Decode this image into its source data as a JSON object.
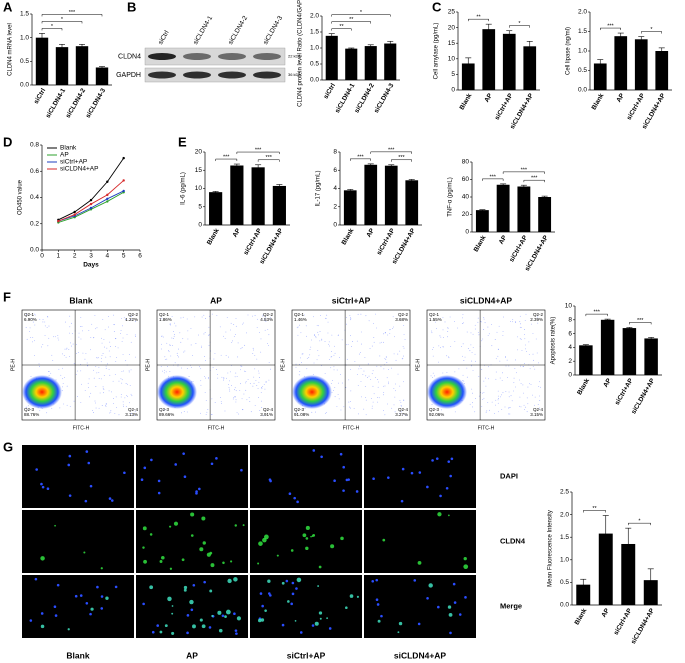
{
  "panels": [
    "A",
    "B",
    "C",
    "D",
    "E",
    "F",
    "G"
  ],
  "blot": {
    "lanes": [
      "siCtrl",
      "siCLDN4-1",
      "siCLDN4-2",
      "siCLDN4-3"
    ],
    "rows": [
      "CLDN4",
      "GAPDH"
    ],
    "sizes": [
      "22 kDa",
      "36 kDa"
    ]
  },
  "flow": {
    "titles": [
      "Blank",
      "AP",
      "siCtrl+AP",
      "siCLDN4+AP"
    ],
    "x_label": "FITC-H",
    "y_label": "PE-H",
    "quadrants": [
      [
        {
          "name": "Q2-1",
          "value": "6.90%"
        },
        {
          "name": "Q2-2",
          "value": "1.22%"
        },
        {
          "name": "Q2-3",
          "value": "88.76%"
        },
        {
          "name": "Q2-4",
          "value": "3.13%"
        }
      ],
      [
        {
          "name": "Q2-1",
          "value": "1.86%"
        },
        {
          "name": "Q2-2",
          "value": "4.53%"
        },
        {
          "name": "Q2-3",
          "value": "89.66%"
        },
        {
          "name": "Q2-4",
          "value": "3.91%"
        }
      ],
      [
        {
          "name": "Q2-1",
          "value": "1.46%"
        },
        {
          "name": "Q2-2",
          "value": "3.68%"
        },
        {
          "name": "Q2-3",
          "value": "91.08%"
        },
        {
          "name": "Q2-4",
          "value": "3.27%"
        }
      ],
      [
        {
          "name": "Q2-1",
          "value": "1.55%"
        },
        {
          "name": "Q2-2",
          "value": "2.39%"
        },
        {
          "name": "Q2-3",
          "value": "92.06%"
        },
        {
          "name": "Q2-4",
          "value": "3.15%"
        }
      ]
    ]
  },
  "microscopy": {
    "rows": [
      "DAPI",
      "CLDN4",
      "Merge"
    ],
    "columns": [
      "Blank",
      "AP",
      "siCtrl+AP",
      "siCLDN4+AP"
    ]
  },
  "chart_data": [
    {
      "type": "bar",
      "y_label": "CLDN4 mRNA level",
      "categories": [
        "siCtrl",
        "siCLDN4-1",
        "siCLDN4-2",
        "siCLDN4-3"
      ],
      "values": [
        1.0,
        0.8,
        0.82,
        0.37
      ],
      "errors": [
        0.09,
        0.06,
        0.04,
        0.02
      ],
      "color": "#000000",
      "ylim": [
        0,
        1.5
      ],
      "yticks": [
        {
          "value": 0,
          "label": "0.0"
        },
        0.5,
        {
          "value": 1,
          "label": "1.0"
        },
        1.5
      ],
      "brackets": [
        {
          "from": 0,
          "to": 1,
          "label": "*"
        },
        {
          "from": 0,
          "to": 2,
          "label": "*"
        },
        {
          "from": 0,
          "to": 3,
          "label": "***"
        }
      ]
    },
    {
      "type": "bar",
      "y_label": "CLDN4 protein level Ratio (CLDN4/GAPDH)",
      "categories": [
        "siCtrl",
        "siCLDN4-1",
        "siCLDN4-2",
        "siCLDN4-3"
      ],
      "values": [
        1.38,
        0.98,
        1.06,
        1.14
      ],
      "errors": [
        0.07,
        0.02,
        0.04,
        0.07
      ],
      "color": "#000000",
      "ylim": [
        0,
        2
      ],
      "yticks": [
        {
          "value": 0,
          "label": "0.0"
        },
        0.5,
        {
          "value": 1,
          "label": "1.0"
        },
        1.5,
        {
          "value": 2,
          "label": "2.0"
        }
      ],
      "brackets": [
        {
          "from": 0,
          "to": 1,
          "label": "**"
        },
        {
          "from": 0,
          "to": 2,
          "label": "**"
        },
        {
          "from": 0,
          "to": 3,
          "label": "*"
        }
      ]
    },
    {
      "type": "bar",
      "y_label": "Cell amylase (pg/mL)",
      "categories": [
        "Blank",
        "AP",
        "siCtrl+AP",
        "siCLDN4+AP"
      ],
      "values": [
        8.5,
        19.5,
        18,
        14
      ],
      "errors": [
        1.8,
        1.6,
        1.0,
        1.6
      ],
      "color": "#000000",
      "ylim": [
        0,
        25
      ],
      "yticks": [
        0,
        5,
        10,
        15,
        20,
        25
      ],
      "brackets": [
        {
          "from": 0,
          "to": 1,
          "label": "**"
        },
        {
          "from": 2,
          "to": 3,
          "label": "*"
        }
      ]
    },
    {
      "type": "bar",
      "y_label": "Cell lipase (ng/ml)",
      "categories": [
        "Blank",
        "AP",
        "siCtrl+AP",
        "siCLDN4+AP"
      ],
      "values": [
        0.68,
        1.38,
        1.3,
        1.0
      ],
      "errors": [
        0.1,
        0.08,
        0.07,
        0.08
      ],
      "color": "#000000",
      "ylim": [
        0,
        2
      ],
      "yticks": [
        {
          "value": 0,
          "label": "0.0"
        },
        0.5,
        {
          "value": 1,
          "label": "1.0"
        },
        1.5,
        {
          "value": 2,
          "label": "2.0"
        }
      ],
      "brackets": [
        {
          "from": 0,
          "to": 1,
          "label": "***"
        },
        {
          "from": 2,
          "to": 3,
          "label": "*"
        }
      ]
    },
    {
      "type": "line",
      "x_label": "Days",
      "y_label": "OD450 value",
      "x": [
        1,
        2,
        3,
        4,
        5
      ],
      "xlim": [
        0,
        6
      ],
      "xticks": [
        0,
        1,
        2,
        3,
        4,
        5,
        6
      ],
      "ylim": [
        0,
        0.8
      ],
      "yticks": [
        {
          "value": 0,
          "label": "0.0"
        },
        0.2,
        0.4,
        0.6,
        0.8
      ],
      "legend": "upper left",
      "series": [
        {
          "name": "Blank",
          "color": "#000000",
          "values": [
            0.23,
            0.29,
            0.38,
            0.52,
            0.7
          ]
        },
        {
          "name": "AP",
          "color": "#2ca02c",
          "values": [
            0.21,
            0.25,
            0.31,
            0.37,
            0.44
          ]
        },
        {
          "name": "siCtrl+AP",
          "color": "#1f3fbf",
          "values": [
            0.22,
            0.26,
            0.32,
            0.39,
            0.45
          ]
        },
        {
          "name": "siCLDN4+AP",
          "color": "#d62728",
          "values": [
            0.22,
            0.27,
            0.35,
            0.42,
            0.53
          ]
        }
      ]
    },
    {
      "type": "bar",
      "y_label": "IL-6 (pg/mL)",
      "categories": [
        "Blank",
        "AP",
        "siCtrl+AP",
        "siCLDN4+AP"
      ],
      "values": [
        9,
        16.3,
        15.8,
        10.7
      ],
      "errors": [
        0.2,
        0.4,
        0.7,
        0.4
      ],
      "color": "#000000",
      "ylim": [
        0,
        20
      ],
      "yticks": [
        0,
        5,
        10,
        15,
        20
      ],
      "brackets": [
        {
          "from": 0,
          "to": 1,
          "label": "***"
        },
        {
          "from": 2,
          "to": 3,
          "label": "***"
        },
        {
          "from": 1,
          "to": 3,
          "label": "***"
        }
      ]
    },
    {
      "type": "bar",
      "y_label": "IL-17 (pg/mL)",
      "categories": [
        "Blank",
        "AP",
        "siCtrl+AP",
        "siCLDN4+AP"
      ],
      "values": [
        3.8,
        6.6,
        6.5,
        4.9
      ],
      "errors": [
        0.1,
        0.1,
        0.1,
        0.1
      ],
      "color": "#000000",
      "ylim": [
        0,
        8
      ],
      "yticks": [
        0,
        2,
        4,
        6,
        8
      ],
      "brackets": [
        {
          "from": 0,
          "to": 1,
          "label": "***"
        },
        {
          "from": 2,
          "to": 3,
          "label": "***"
        },
        {
          "from": 1,
          "to": 3,
          "label": "***"
        }
      ]
    },
    {
      "type": "bar",
      "y_label": "TNF-α (pg/mL)",
      "categories": [
        "Blank",
        "AP",
        "siCtrl+AP",
        "siCLDN4+AP"
      ],
      "values": [
        25,
        54,
        52,
        40
      ],
      "errors": [
        0.5,
        1,
        1.5,
        1
      ],
      "color": "#000000",
      "ylim": [
        0,
        80
      ],
      "yticks": [
        0,
        20,
        40,
        60,
        80
      ],
      "brackets": [
        {
          "from": 0,
          "to": 1,
          "label": "***"
        },
        {
          "from": 2,
          "to": 3,
          "label": "***"
        },
        {
          "from": 1,
          "to": 3,
          "label": "***"
        }
      ]
    },
    {
      "type": "bar",
      "y_label": "Apoptosis rate(%)",
      "categories": [
        "Blank",
        "AP",
        "siCtrl+AP",
        "siCLDN4+AP"
      ],
      "values": [
        4.3,
        8.0,
        6.8,
        5.3
      ],
      "errors": [
        0.1,
        0.1,
        0.1,
        0.15
      ],
      "color": "#000000",
      "ylim": [
        0,
        10
      ],
      "yticks": [
        0,
        2,
        4,
        6,
        8,
        10
      ],
      "brackets": [
        {
          "from": 0,
          "to": 1,
          "label": "***"
        },
        {
          "from": 2,
          "to": 3,
          "label": "***"
        }
      ]
    },
    {
      "type": "bar",
      "y_label": "Mean Fluorescence Intensity",
      "categories": [
        "Blank",
        "AP",
        "siCtrl+AP",
        "siCLDN4+AP"
      ],
      "values": [
        0.45,
        1.58,
        1.35,
        0.55
      ],
      "errors": [
        0.12,
        0.4,
        0.35,
        0.25
      ],
      "color": "#000000",
      "ylim": [
        0,
        2.5
      ],
      "yticks": [
        {
          "value": 0,
          "label": "0.0"
        },
        0.5,
        {
          "value": 1,
          "label": "1.0"
        },
        1.5,
        {
          "value": 2,
          "label": "2.0"
        },
        2.5
      ],
      "brackets": [
        {
          "from": 0,
          "to": 1,
          "label": "**"
        },
        {
          "from": 2,
          "to": 3,
          "label": "*"
        }
      ]
    }
  ]
}
